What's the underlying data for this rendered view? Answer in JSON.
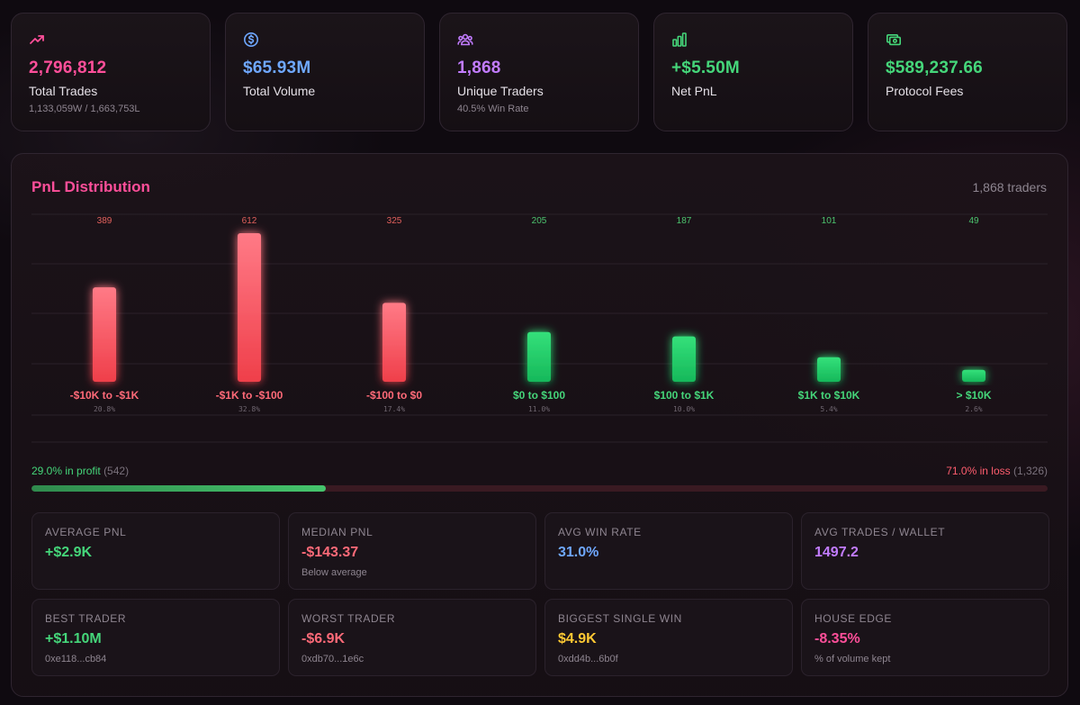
{
  "stats": [
    {
      "icon": "trending-up-icon",
      "value": "2,796,812",
      "label": "Total Trades",
      "sub": "1,133,059W / 1,663,753L",
      "color": "#ff4f9a"
    },
    {
      "icon": "dollar-coin-icon",
      "value": "$65.93M",
      "label": "Total Volume",
      "sub": "",
      "color": "#6fa8ff"
    },
    {
      "icon": "users-icon",
      "value": "1,868",
      "label": "Unique Traders",
      "sub": "40.5% Win Rate",
      "color": "#c27cff"
    },
    {
      "icon": "bar-chart-icon",
      "value": "+$5.50M",
      "label": "Net PnL",
      "sub": "",
      "color": "#45d67a"
    },
    {
      "icon": "banknote-icon",
      "value": "$589,237.66",
      "label": "Protocol Fees",
      "sub": "",
      "color": "#45d67a"
    }
  ],
  "panel": {
    "title": "PnL Distribution",
    "count": "1,868 traders"
  },
  "chart_data": {
    "type": "bar",
    "title": "PnL Distribution",
    "categories": [
      "-$10K to -$1K",
      "-$1K to -$100",
      "-$100 to $0",
      "$0 to $100",
      "$100 to $1K",
      "$1K to $10K",
      "> $10K"
    ],
    "values": [
      389,
      612,
      325,
      205,
      187,
      101,
      49
    ],
    "value_labels": [
      "389",
      "612",
      "325",
      "205",
      "187",
      "101",
      "49"
    ],
    "percents": [
      "20.8%",
      "32.8%",
      "17.4%",
      "11.0%",
      "10.0%",
      "5.4%",
      "2.6%"
    ],
    "sign": [
      "loss",
      "loss",
      "loss",
      "profit",
      "profit",
      "profit",
      "profit"
    ],
    "ylim": [
      0,
      612
    ],
    "grid": true,
    "colors": {
      "loss_top": "#ff7a86",
      "loss_bottom": "#ef3f4a",
      "profit_top": "#34e07a",
      "profit_bottom": "#16b85a",
      "loss_text": "#ff6a78",
      "profit_text": "#45d67a",
      "loss_count": "#e0605c",
      "profit_count": "#4cc46e"
    }
  },
  "split": {
    "profit_label": "29.0% in profit",
    "profit_count": "(542)",
    "loss_label": "71.0% in loss",
    "loss_count": "(1,326)",
    "profit_fraction": 0.29
  },
  "metrics": [
    {
      "label": "AVERAGE PNL",
      "value": "+$2.9K",
      "sub": "",
      "color": "#45d67a"
    },
    {
      "label": "MEDIAN PNL",
      "value": "-$143.37",
      "sub": "Below average",
      "color": "#ff6a78"
    },
    {
      "label": "AVG WIN RATE",
      "value": "31.0%",
      "sub": "",
      "color": "#6fa8ff"
    },
    {
      "label": "AVG TRADES / WALLET",
      "value": "1497.2",
      "sub": "",
      "color": "#c27cff"
    },
    {
      "label": "BEST TRADER",
      "value": "+$1.10M",
      "sub": "0xe118...cb84",
      "color": "#45d67a"
    },
    {
      "label": "WORST TRADER",
      "value": "-$6.9K",
      "sub": "0xdb70...1e6c",
      "color": "#ff6a78"
    },
    {
      "label": "BIGGEST SINGLE WIN",
      "value": "$4.9K",
      "sub": "0xdd4b...6b0f",
      "color": "#ffc933"
    },
    {
      "label": "HOUSE EDGE",
      "value": "-8.35%",
      "sub": "% of volume kept",
      "color": "#ff4f9a"
    }
  ]
}
